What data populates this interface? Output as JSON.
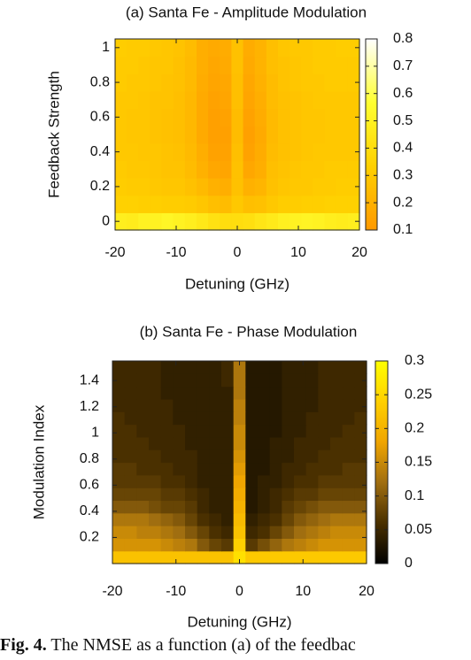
{
  "chart_data": [
    {
      "type": "heatmap",
      "title": "(a) Santa Fe - Amplitude Modulation",
      "xlabel": "Detuning (GHz)",
      "ylabel": "Feedback Strength",
      "xlim": [
        -20,
        20
      ],
      "ylim": [
        -0.05,
        1.05
      ],
      "x_ticks": [
        "-20",
        "-10",
        "0",
        "10",
        "20"
      ],
      "y_ticks": [
        "0",
        "0.2",
        "0.4",
        "0.6",
        "0.8",
        "1"
      ],
      "colorbar": {
        "min": 0.1,
        "max": 0.8,
        "ticks": [
          "0.1",
          "0.2",
          "0.3",
          "0.4",
          "0.5",
          "0.6",
          "0.7",
          "0.8"
        ],
        "colormap": [
          "#ff9900",
          "#ffd000",
          "#ffff30",
          "#ffffff"
        ]
      },
      "x": [
        -20,
        -18,
        -16,
        -14,
        -12,
        -10,
        -8,
        -6,
        -4,
        -2,
        0,
        2,
        4,
        6,
        8,
        10,
        12,
        14,
        16,
        18,
        20
      ],
      "y": [
        0,
        0.1,
        0.2,
        0.3,
        0.4,
        0.5,
        0.6,
        0.7,
        0.8,
        0.9,
        1.0
      ],
      "z": [
        [
          0.48,
          0.47,
          0.5,
          0.5,
          0.52,
          0.5,
          0.48,
          0.45,
          0.42,
          0.4,
          0.4,
          0.41,
          0.44,
          0.46,
          0.49,
          0.5,
          0.51,
          0.5,
          0.48,
          0.47,
          0.48
        ],
        [
          0.34,
          0.34,
          0.33,
          0.33,
          0.32,
          0.32,
          0.31,
          0.29,
          0.26,
          0.25,
          0.3,
          0.26,
          0.27,
          0.3,
          0.32,
          0.32,
          0.33,
          0.33,
          0.34,
          0.34,
          0.34
        ],
        [
          0.32,
          0.31,
          0.31,
          0.3,
          0.29,
          0.29,
          0.27,
          0.24,
          0.2,
          0.19,
          0.27,
          0.2,
          0.22,
          0.27,
          0.29,
          0.3,
          0.3,
          0.31,
          0.31,
          0.32,
          0.32
        ],
        [
          0.31,
          0.3,
          0.3,
          0.29,
          0.28,
          0.28,
          0.25,
          0.2,
          0.16,
          0.15,
          0.27,
          0.16,
          0.19,
          0.26,
          0.28,
          0.29,
          0.3,
          0.3,
          0.31,
          0.31,
          0.31
        ],
        [
          0.3,
          0.3,
          0.29,
          0.29,
          0.28,
          0.27,
          0.24,
          0.19,
          0.14,
          0.14,
          0.26,
          0.14,
          0.18,
          0.25,
          0.27,
          0.28,
          0.29,
          0.3,
          0.3,
          0.3,
          0.3
        ],
        [
          0.3,
          0.29,
          0.29,
          0.28,
          0.27,
          0.26,
          0.23,
          0.17,
          0.13,
          0.13,
          0.25,
          0.13,
          0.17,
          0.24,
          0.27,
          0.28,
          0.29,
          0.29,
          0.3,
          0.3,
          0.3
        ],
        [
          0.3,
          0.29,
          0.29,
          0.28,
          0.27,
          0.26,
          0.23,
          0.17,
          0.13,
          0.14,
          0.25,
          0.14,
          0.18,
          0.24,
          0.27,
          0.28,
          0.29,
          0.29,
          0.3,
          0.3,
          0.3
        ],
        [
          0.3,
          0.3,
          0.29,
          0.28,
          0.28,
          0.26,
          0.23,
          0.17,
          0.14,
          0.15,
          0.26,
          0.15,
          0.19,
          0.25,
          0.27,
          0.28,
          0.29,
          0.3,
          0.3,
          0.3,
          0.3
        ],
        [
          0.31,
          0.3,
          0.3,
          0.29,
          0.28,
          0.27,
          0.24,
          0.18,
          0.15,
          0.16,
          0.26,
          0.16,
          0.2,
          0.25,
          0.28,
          0.29,
          0.3,
          0.3,
          0.31,
          0.31,
          0.31
        ],
        [
          0.31,
          0.31,
          0.3,
          0.29,
          0.29,
          0.27,
          0.24,
          0.19,
          0.16,
          0.17,
          0.27,
          0.17,
          0.21,
          0.26,
          0.28,
          0.29,
          0.3,
          0.31,
          0.31,
          0.31,
          0.31
        ],
        [
          0.32,
          0.31,
          0.31,
          0.3,
          0.29,
          0.28,
          0.25,
          0.19,
          0.17,
          0.18,
          0.27,
          0.18,
          0.21,
          0.26,
          0.29,
          0.3,
          0.3,
          0.31,
          0.31,
          0.32,
          0.32
        ]
      ]
    },
    {
      "type": "heatmap",
      "title": "(b) Santa Fe - Phase Modulation",
      "xlabel": "Detuning (GHz)",
      "ylabel": "Modulation Index",
      "xlim": [
        -20,
        20
      ],
      "ylim": [
        0,
        1.55
      ],
      "x_ticks": [
        "-20",
        "-10",
        "0",
        "10",
        "20"
      ],
      "y_ticks": [
        "0.2",
        "0.4",
        "0.6",
        "0.8",
        "1",
        "1.2",
        "1.4"
      ],
      "colorbar": {
        "min": 0,
        "max": 0.3,
        "ticks": [
          "0",
          "0.05",
          "0.1",
          "0.15",
          "0.2",
          "0.25",
          "0.3"
        ],
        "colormap": [
          "#000000",
          "#4a3000",
          "#a06e10",
          "#f0a500",
          "#ffd000",
          "#ffff00"
        ]
      },
      "x": [
        -20,
        -18,
        -16,
        -14,
        -12,
        -10,
        -8,
        -6,
        -4,
        -2,
        0,
        2,
        4,
        6,
        8,
        10,
        12,
        14,
        16,
        18,
        20
      ],
      "y": [
        0.05,
        0.15,
        0.25,
        0.35,
        0.45,
        0.55,
        0.65,
        0.75,
        0.85,
        0.95,
        1.05,
        1.15,
        1.25,
        1.35,
        1.45,
        1.55
      ],
      "z": [
        [
          0.22,
          0.22,
          0.22,
          0.22,
          0.22,
          0.22,
          0.22,
          0.22,
          0.22,
          0.22,
          0.26,
          0.23,
          0.23,
          0.23,
          0.23,
          0.23,
          0.23,
          0.23,
          0.23,
          0.23,
          0.23
        ],
        [
          0.16,
          0.16,
          0.16,
          0.16,
          0.15,
          0.14,
          0.13,
          0.1,
          0.08,
          0.07,
          0.24,
          0.07,
          0.09,
          0.11,
          0.13,
          0.14,
          0.15,
          0.16,
          0.16,
          0.16,
          0.16
        ],
        [
          0.15,
          0.15,
          0.14,
          0.14,
          0.13,
          0.12,
          0.1,
          0.08,
          0.06,
          0.05,
          0.22,
          0.05,
          0.06,
          0.08,
          0.1,
          0.12,
          0.13,
          0.14,
          0.15,
          0.15,
          0.15
        ],
        [
          0.13,
          0.13,
          0.13,
          0.12,
          0.11,
          0.1,
          0.08,
          0.06,
          0.05,
          0.04,
          0.21,
          0.04,
          0.05,
          0.06,
          0.08,
          0.1,
          0.11,
          0.12,
          0.13,
          0.13,
          0.13
        ],
        [
          0.1,
          0.1,
          0.1,
          0.09,
          0.08,
          0.08,
          0.07,
          0.05,
          0.04,
          0.04,
          0.2,
          0.03,
          0.04,
          0.05,
          0.07,
          0.08,
          0.09,
          0.1,
          0.1,
          0.1,
          0.1
        ],
        [
          0.08,
          0.08,
          0.08,
          0.08,
          0.07,
          0.07,
          0.06,
          0.05,
          0.04,
          0.04,
          0.19,
          0.03,
          0.04,
          0.05,
          0.06,
          0.07,
          0.07,
          0.08,
          0.08,
          0.08,
          0.08
        ],
        [
          0.07,
          0.07,
          0.07,
          0.07,
          0.06,
          0.06,
          0.05,
          0.04,
          0.04,
          0.04,
          0.18,
          0.03,
          0.04,
          0.04,
          0.05,
          0.06,
          0.06,
          0.07,
          0.07,
          0.07,
          0.07
        ],
        [
          0.07,
          0.07,
          0.06,
          0.06,
          0.06,
          0.05,
          0.05,
          0.04,
          0.04,
          0.04,
          0.17,
          0.03,
          0.03,
          0.04,
          0.05,
          0.05,
          0.06,
          0.06,
          0.06,
          0.07,
          0.07
        ],
        [
          0.06,
          0.06,
          0.06,
          0.06,
          0.05,
          0.05,
          0.05,
          0.04,
          0.04,
          0.04,
          0.16,
          0.03,
          0.03,
          0.04,
          0.04,
          0.05,
          0.05,
          0.06,
          0.06,
          0.06,
          0.06
        ],
        [
          0.06,
          0.06,
          0.06,
          0.05,
          0.05,
          0.05,
          0.04,
          0.04,
          0.04,
          0.04,
          0.15,
          0.03,
          0.03,
          0.04,
          0.04,
          0.05,
          0.05,
          0.05,
          0.06,
          0.06,
          0.06
        ],
        [
          0.06,
          0.06,
          0.05,
          0.05,
          0.05,
          0.05,
          0.04,
          0.04,
          0.04,
          0.04,
          0.15,
          0.03,
          0.03,
          0.03,
          0.04,
          0.04,
          0.05,
          0.05,
          0.05,
          0.06,
          0.06
        ],
        [
          0.06,
          0.05,
          0.05,
          0.05,
          0.05,
          0.04,
          0.04,
          0.04,
          0.04,
          0.04,
          0.14,
          0.03,
          0.03,
          0.03,
          0.04,
          0.04,
          0.05,
          0.05,
          0.05,
          0.05,
          0.06
        ],
        [
          0.05,
          0.05,
          0.05,
          0.05,
          0.05,
          0.04,
          0.04,
          0.04,
          0.04,
          0.04,
          0.14,
          0.03,
          0.03,
          0.03,
          0.04,
          0.04,
          0.04,
          0.05,
          0.05,
          0.05,
          0.05
        ],
        [
          0.05,
          0.05,
          0.05,
          0.05,
          0.04,
          0.04,
          0.04,
          0.04,
          0.04,
          0.04,
          0.13,
          0.03,
          0.03,
          0.03,
          0.04,
          0.04,
          0.04,
          0.05,
          0.05,
          0.05,
          0.05
        ],
        [
          0.05,
          0.05,
          0.05,
          0.05,
          0.04,
          0.04,
          0.04,
          0.04,
          0.04,
          0.05,
          0.13,
          0.03,
          0.03,
          0.03,
          0.04,
          0.04,
          0.04,
          0.05,
          0.05,
          0.05,
          0.05
        ],
        [
          0.05,
          0.05,
          0.05,
          0.05,
          0.04,
          0.04,
          0.04,
          0.04,
          0.04,
          0.05,
          0.13,
          0.03,
          0.03,
          0.03,
          0.04,
          0.04,
          0.04,
          0.05,
          0.05,
          0.05,
          0.05
        ]
      ]
    }
  ],
  "caption": {
    "label": "Fig. 4.",
    "text": " The NMSE as a function (a) of the feedbac"
  }
}
